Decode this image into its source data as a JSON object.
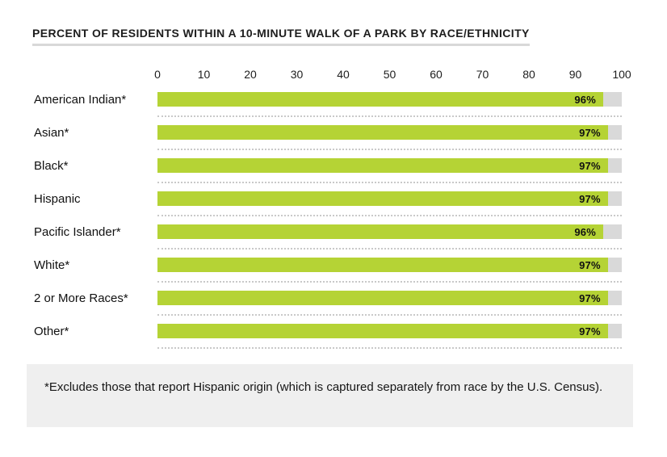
{
  "title": "PERCENT OF RESIDENTS WITHIN A 10-MINUTE WALK OF A PARK BY RACE/ETHNICITY",
  "footnote": "*Excludes those that report Hispanic origin (which is captured separately from race by the U.S. Census).",
  "colors": {
    "bar": "#b5d335",
    "track": "#d9d9d9",
    "footnote_background": "#efefef",
    "title_rule": "#d8d8d8",
    "separator_dots": "#c9c9c9"
  },
  "chart_data": {
    "type": "bar",
    "orientation": "horizontal",
    "title": "PERCENT OF RESIDENTS WITHIN A 10-MINUTE WALK OF A PARK BY RACE/ETHNICITY",
    "categories": [
      "American Indian*",
      "Asian*",
      "Black*",
      "Hispanic",
      "Pacific Islander*",
      "White*",
      "2 or More Races*",
      "Other*"
    ],
    "values": [
      96,
      97,
      97,
      97,
      96,
      97,
      97,
      97
    ],
    "value_labels": [
      "96%",
      "97%",
      "97%",
      "97%",
      "96%",
      "97%",
      "97%",
      "97%"
    ],
    "x_ticks": [
      "0",
      "10",
      "20",
      "30",
      "40",
      "50",
      "60",
      "70",
      "80",
      "90",
      "100"
    ],
    "xlim": [
      0,
      100
    ],
    "xlabel": "",
    "ylabel": "",
    "grid": false,
    "legend": false,
    "data_labels_position": "inside-end"
  }
}
